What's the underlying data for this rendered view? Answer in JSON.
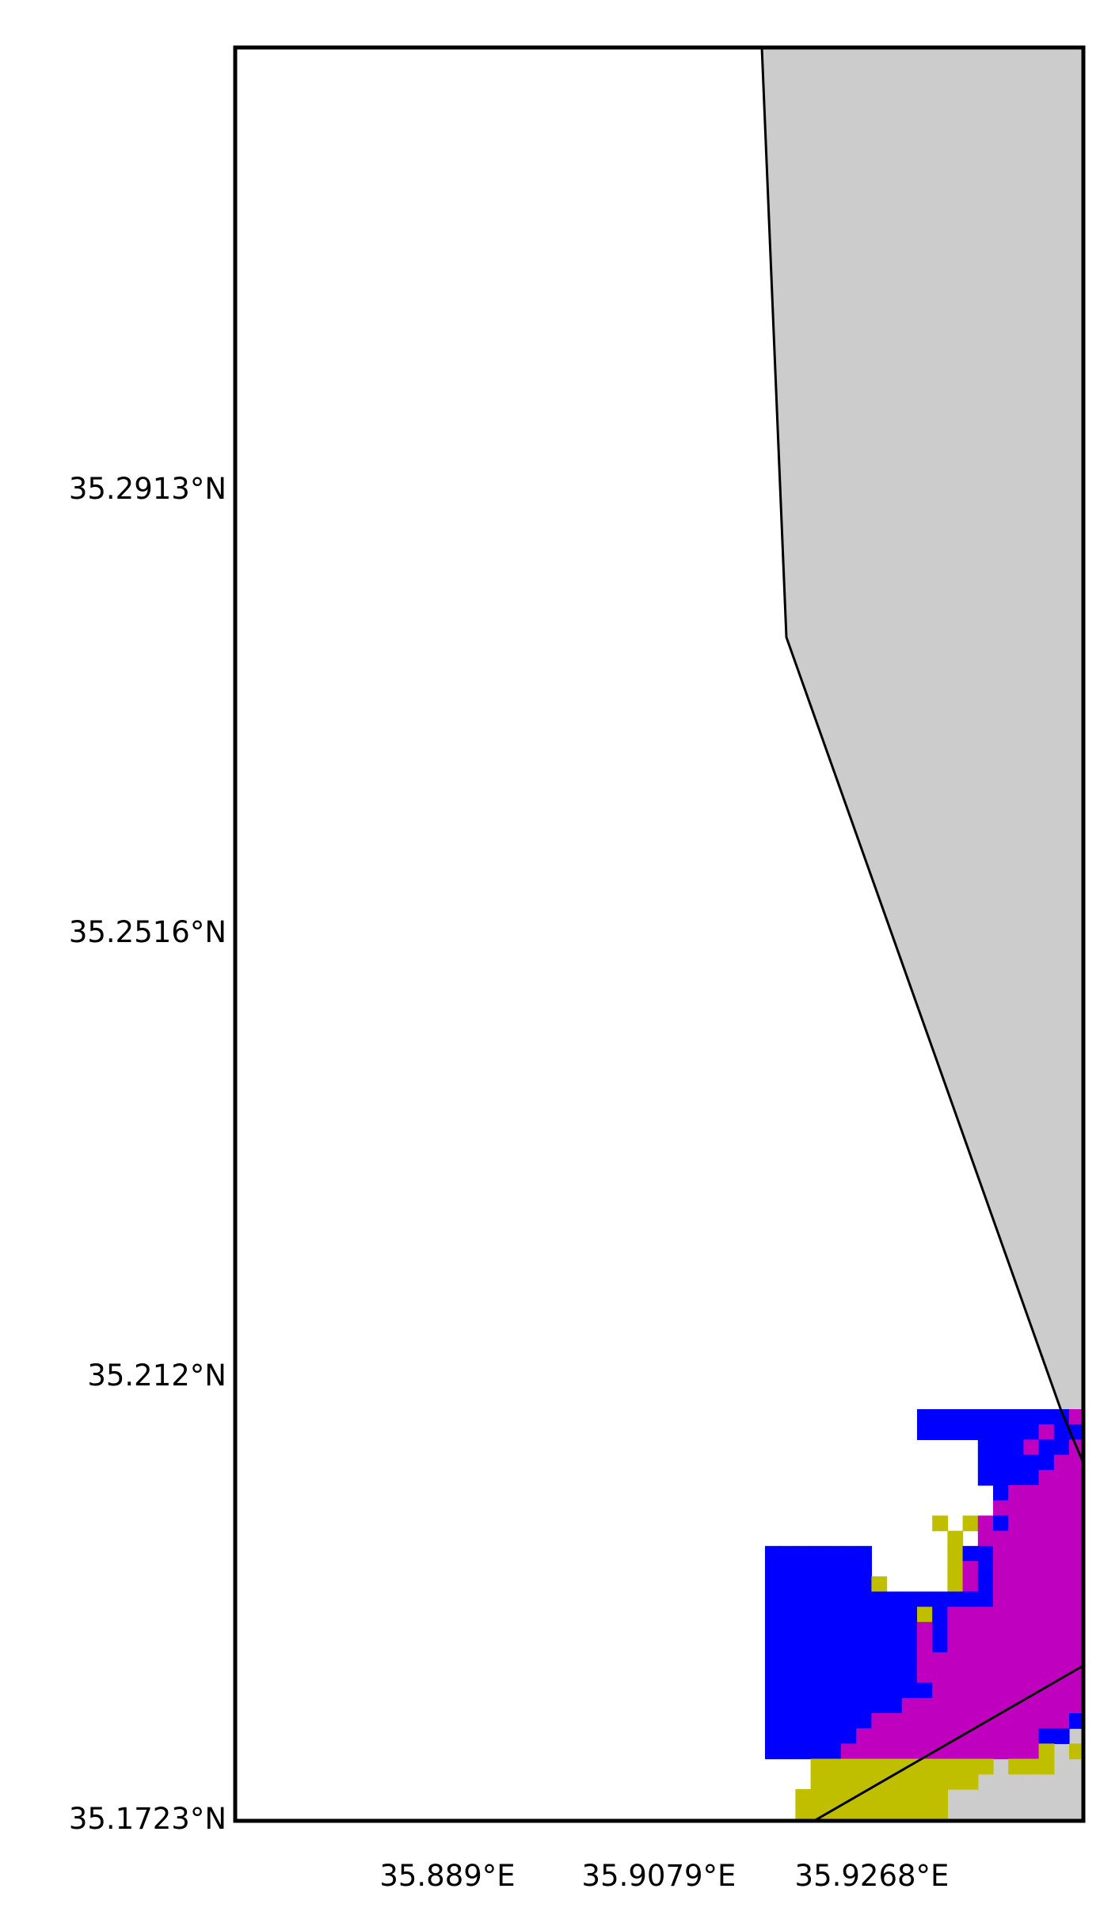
{
  "map": {
    "colors": {
      "land": "#cccccc",
      "water": "#ffffff",
      "frame": "#000000",
      "class_blue": "#0000ff",
      "class_magenta": "#bf00bf",
      "class_olive": "#bfbf00"
    },
    "lat_labels": [
      "35.2913°N",
      "35.2516°N",
      "35.212°N",
      "35.1723°N"
    ],
    "lon_labels": [
      "35.889°E",
      "35.9079°E",
      "35.9268°E"
    ]
  }
}
